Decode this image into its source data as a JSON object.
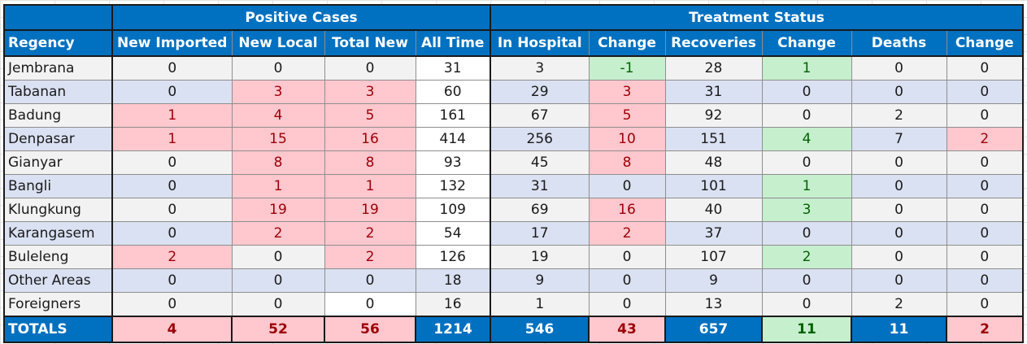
{
  "groups": {
    "positive": "Positive Cases",
    "treatment": "Treatment Status"
  },
  "columns": [
    "Regency",
    "New Imported",
    "New Local",
    "Total New",
    "All Time",
    "In Hospital",
    "Change",
    "Recoveries",
    "Change",
    "Deaths",
    "Change"
  ],
  "rows": [
    {
      "name": "Jembrana",
      "cells": [
        "0",
        "0",
        "0",
        "31",
        "3",
        "-1",
        "28",
        "1",
        "0",
        "0"
      ]
    },
    {
      "name": "Tabanan",
      "cells": [
        "0",
        "3",
        "3",
        "60",
        "29",
        "3",
        "31",
        "0",
        "0",
        "0"
      ]
    },
    {
      "name": "Badung",
      "cells": [
        "1",
        "4",
        "5",
        "161",
        "67",
        "5",
        "92",
        "0",
        "2",
        "0"
      ]
    },
    {
      "name": "Denpasar",
      "cells": [
        "1",
        "15",
        "16",
        "414",
        "256",
        "10",
        "151",
        "4",
        "7",
        "2"
      ]
    },
    {
      "name": "Gianyar",
      "cells": [
        "0",
        "8",
        "8",
        "93",
        "45",
        "8",
        "48",
        "0",
        "0",
        "0"
      ]
    },
    {
      "name": "Bangli",
      "cells": [
        "0",
        "1",
        "1",
        "132",
        "31",
        "0",
        "101",
        "1",
        "0",
        "0"
      ]
    },
    {
      "name": "Klungkung",
      "cells": [
        "0",
        "19",
        "19",
        "109",
        "69",
        "16",
        "40",
        "3",
        "0",
        "0"
      ]
    },
    {
      "name": "Karangasem",
      "cells": [
        "0",
        "2",
        "2",
        "54",
        "17",
        "2",
        "37",
        "0",
        "0",
        "0"
      ]
    },
    {
      "name": "Buleleng",
      "cells": [
        "2",
        "0",
        "2",
        "126",
        "19",
        "0",
        "107",
        "2",
        "0",
        "0"
      ]
    },
    {
      "name": "Other Areas",
      "cells": [
        "0",
        "0",
        "0",
        "18",
        "9",
        "0",
        "9",
        "0",
        "0",
        "0"
      ]
    },
    {
      "name": "Foreigners",
      "cells": [
        "0",
        "0",
        "0",
        "16",
        "1",
        "0",
        "13",
        "0",
        "2",
        "0"
      ]
    }
  ],
  "totals": {
    "name": "TOTALS",
    "cells": [
      "4",
      "52",
      "56",
      "1214",
      "546",
      "43",
      "657",
      "11",
      "11",
      "2"
    ]
  },
  "colors": {
    "header_blue": "#0070c0",
    "increase_fill": "#ffc7ce",
    "increase_text": "#9c0006",
    "decrease_fill": "#c6efce",
    "decrease_text": "#006100"
  }
}
